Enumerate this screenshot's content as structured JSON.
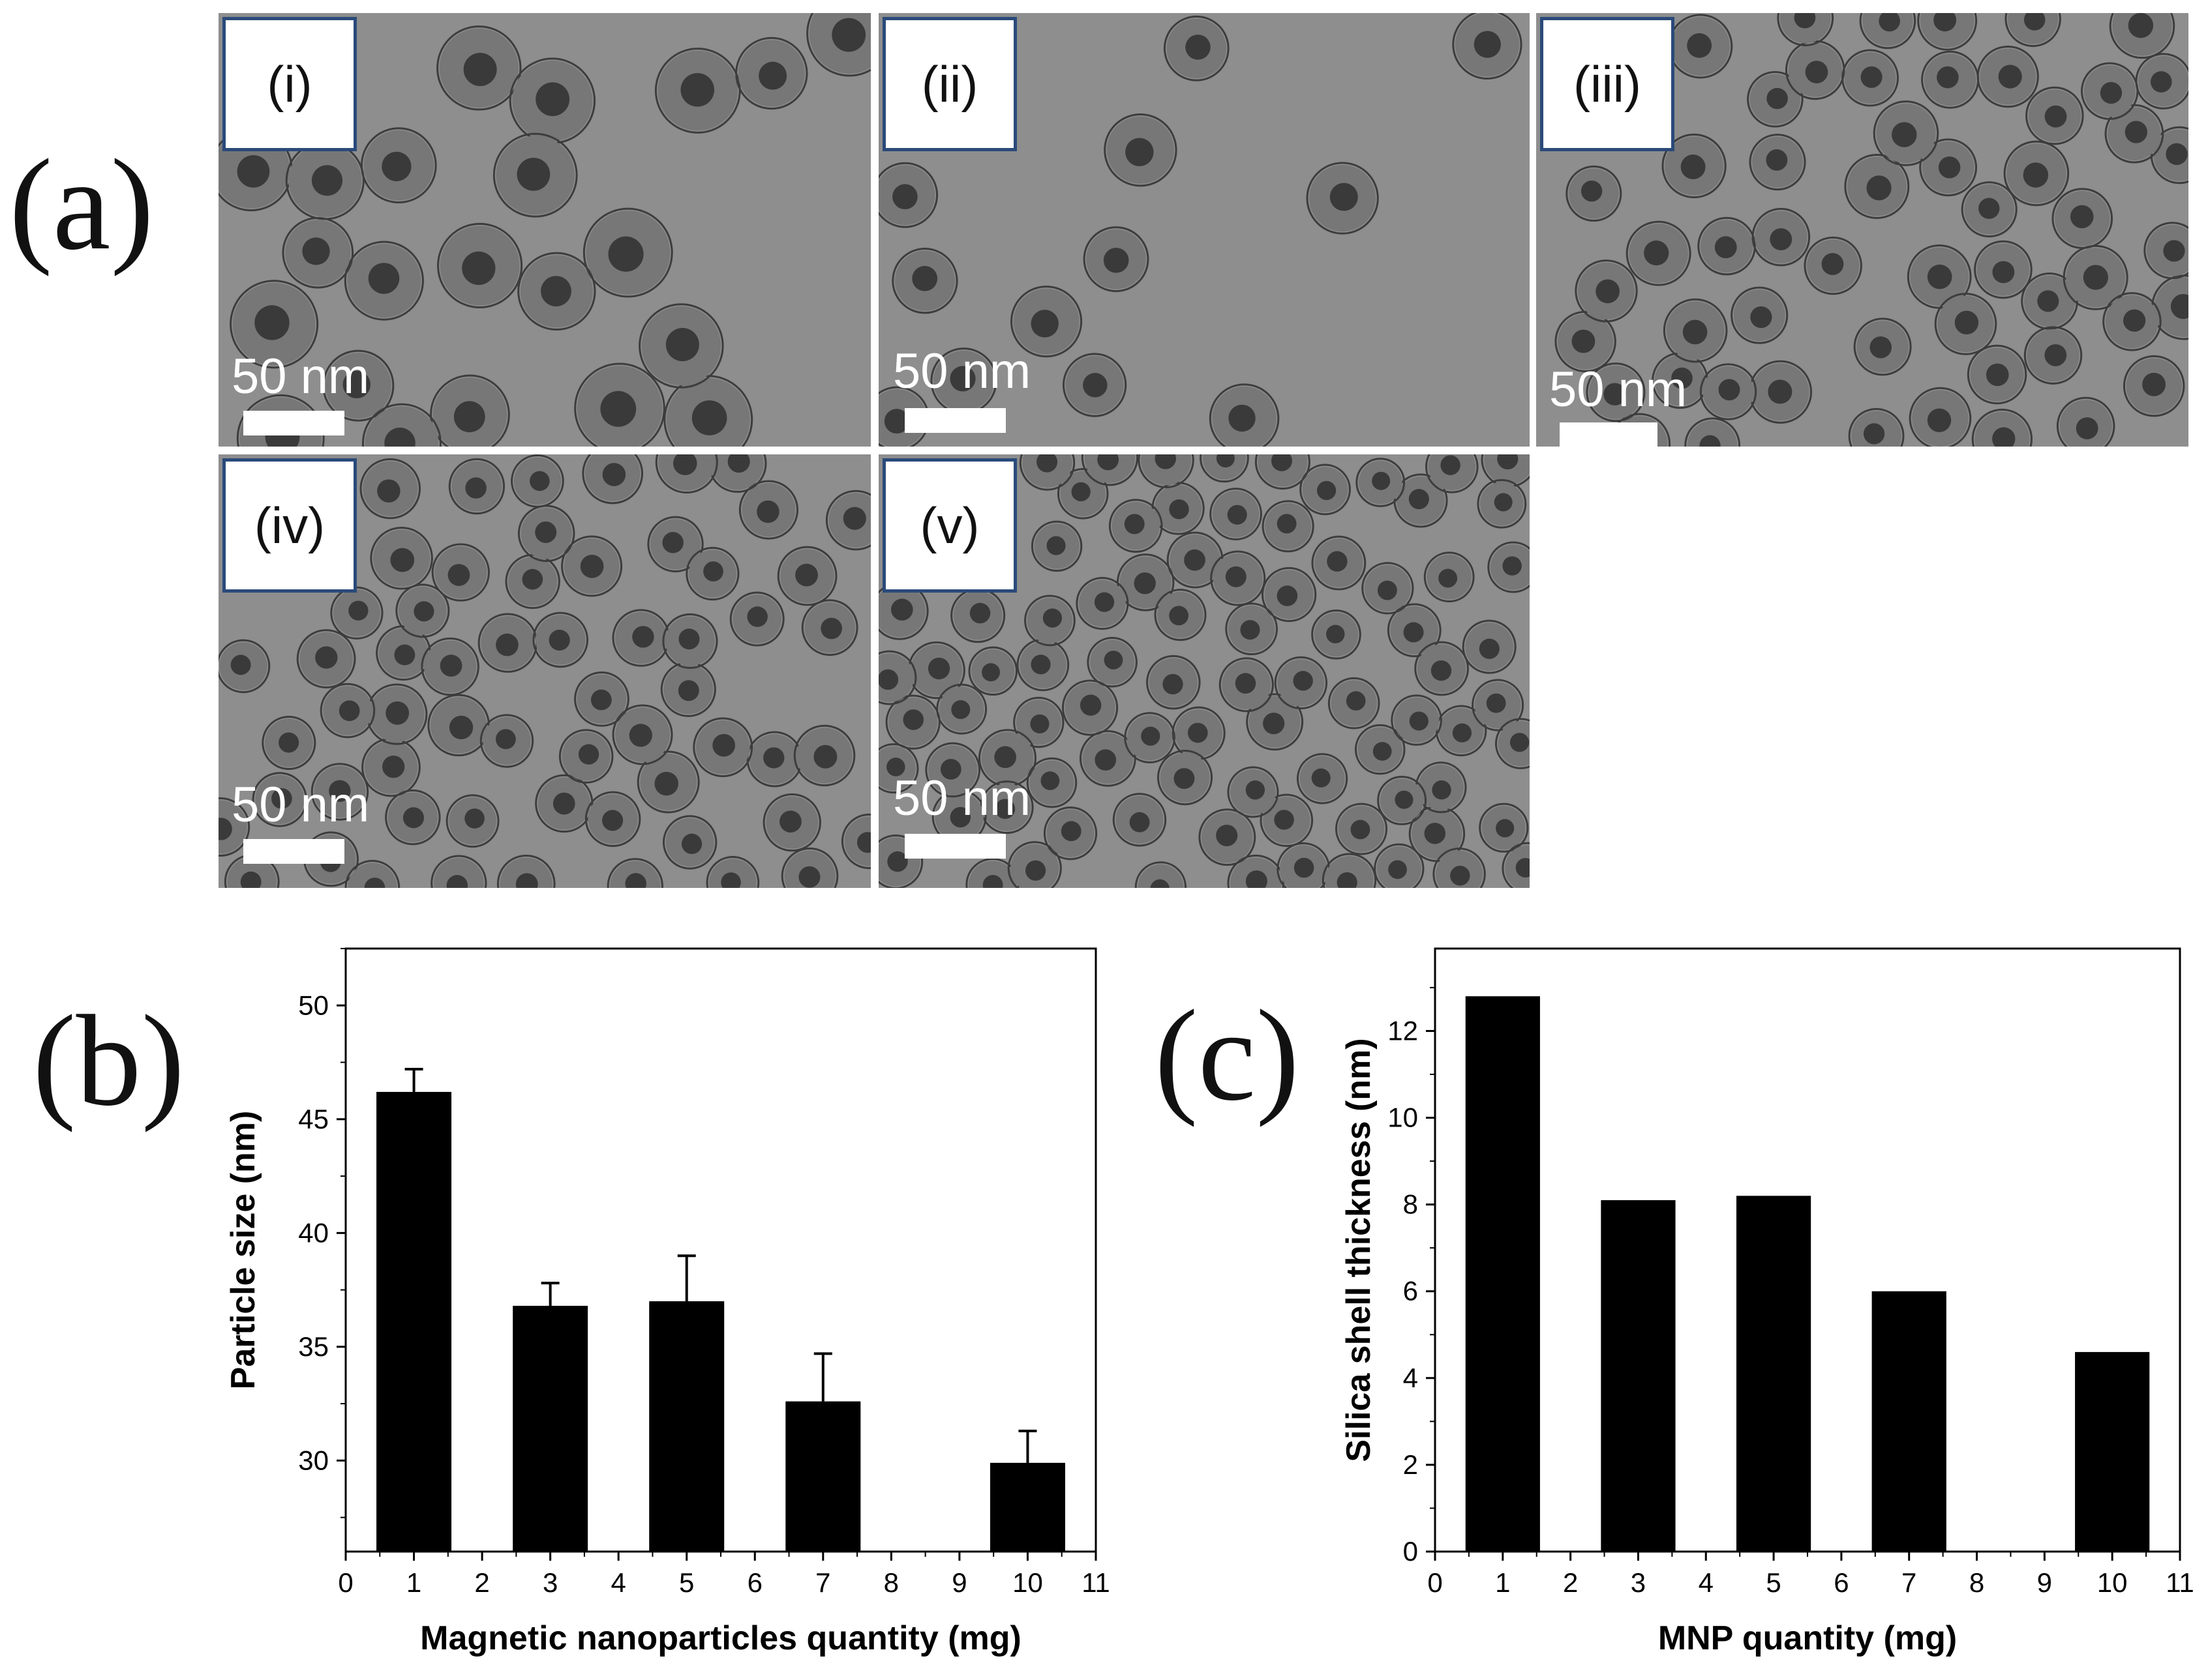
{
  "figure": {
    "panel_a_label": "(a)",
    "panel_b_label": "(b)",
    "panel_c_label": "(c)"
  },
  "tem_images": [
    {
      "tag": "(i)",
      "scale": "50 nm"
    },
    {
      "tag": "(ii)",
      "scale": "50 nm"
    },
    {
      "tag": "(iii)",
      "scale": "50 nm"
    },
    {
      "tag": "(iv)",
      "scale": "50 nm"
    },
    {
      "tag": "(v)",
      "scale": "50 nm"
    }
  ],
  "chart_data": [
    {
      "type": "bar",
      "x": [
        1,
        3,
        5,
        7,
        10
      ],
      "values": [
        46.2,
        36.8,
        37.0,
        32.6,
        29.9
      ],
      "errors": [
        1.0,
        1.0,
        2.0,
        2.1,
        1.4
      ],
      "xlabel": "Magnetic nanoparticles quantity (mg)",
      "ylabel": "Particle size (nm)",
      "xlim": [
        0,
        11
      ],
      "ylim": [
        26,
        52.5
      ],
      "xticks": [
        0,
        1,
        2,
        3,
        4,
        5,
        6,
        7,
        8,
        9,
        10,
        11
      ],
      "yticks": [
        30,
        35,
        40,
        45,
        50
      ],
      "bar_width": 1.1,
      "grid": false,
      "bar_color": "#000000"
    },
    {
      "type": "bar",
      "x": [
        1,
        3,
        5,
        7,
        10
      ],
      "values": [
        12.8,
        8.1,
        8.2,
        6.0,
        4.6
      ],
      "xlabel": "MNP quantity (mg)",
      "ylabel": "Silica shell thickness (nm)",
      "xlim": [
        0,
        11
      ],
      "ylim": [
        0,
        13.9
      ],
      "xticks": [
        0,
        1,
        2,
        3,
        4,
        5,
        6,
        7,
        8,
        9,
        10,
        11
      ],
      "yticks": [
        0,
        2,
        4,
        6,
        8,
        10,
        12
      ],
      "bar_width": 1.1,
      "grid": false,
      "bar_color": "#000000"
    }
  ]
}
